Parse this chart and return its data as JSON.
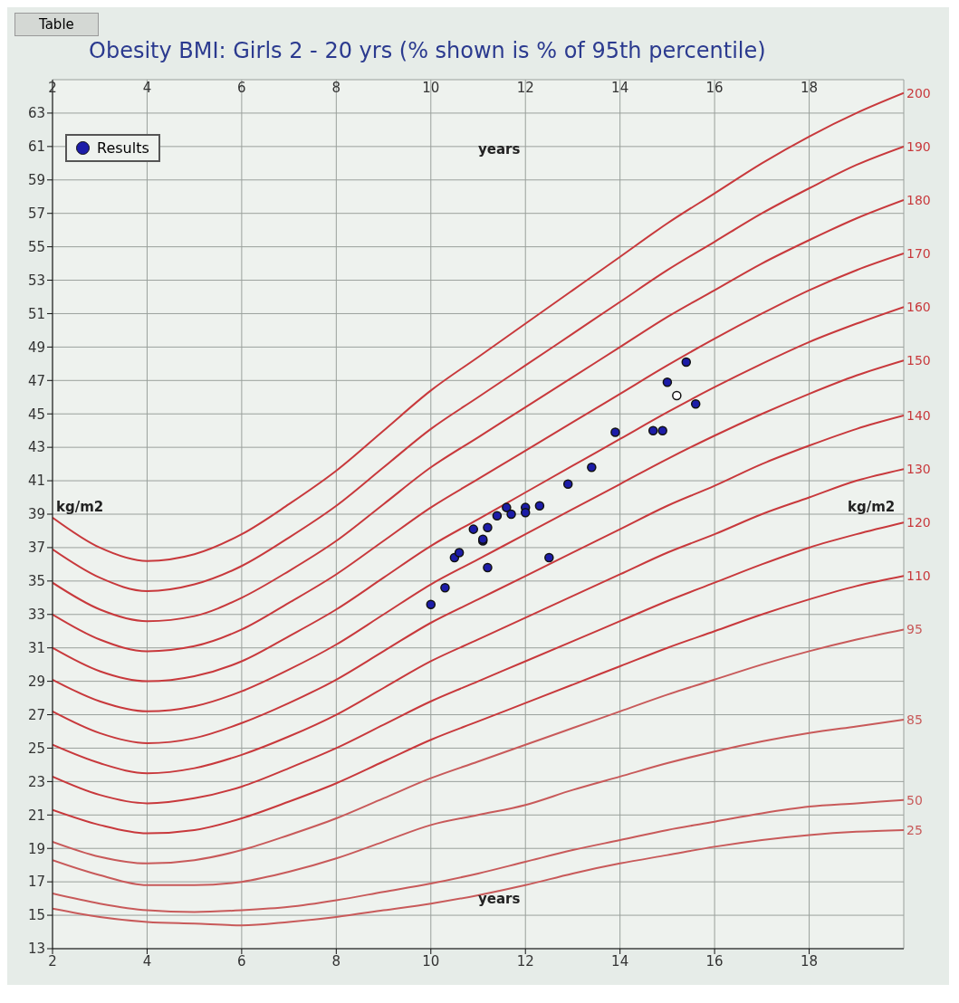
{
  "chart_data": {
    "type": "line",
    "title": "Obesity BMI: Girls 2 - 20 yrs (% shown is % of 95th percentile)",
    "xlabel": "years",
    "x2label": "years",
    "ylabel": "kg/m2",
    "y2label": "kg/m2",
    "annotations": [
      "Table"
    ],
    "xlim": [
      2,
      20
    ],
    "xticks": [
      2,
      4,
      6,
      8,
      10,
      12,
      14,
      16,
      18
    ],
    "x2lim": [
      2,
      20
    ],
    "x2ticks": [
      2,
      4,
      6,
      8,
      10,
      12,
      14,
      16,
      18
    ],
    "ylim": [
      13,
      65
    ],
    "yticks": [
      13,
      15,
      17,
      19,
      21,
      23,
      25,
      27,
      29,
      31,
      33,
      35,
      37,
      39,
      41,
      43,
      45,
      47,
      49,
      51,
      53,
      55,
      57,
      59,
      61,
      63
    ],
    "grid": true,
    "legend": "top left",
    "series": [
      {
        "name": "200",
        "color": "#c8393c",
        "x": [
          2,
          3,
          4,
          5,
          6,
          7,
          8,
          9,
          10,
          11,
          12,
          13,
          14,
          15,
          16,
          17,
          18,
          19,
          20
        ],
        "values": [
          38.8,
          37.0,
          36.2,
          36.6,
          37.8,
          39.6,
          41.6,
          44.0,
          46.4,
          48.4,
          50.4,
          52.4,
          54.4,
          56.4,
          58.2,
          60.0,
          61.6,
          63.0,
          64.2
        ]
      },
      {
        "name": "190",
        "color": "#c8393c",
        "x": [
          2,
          3,
          4,
          5,
          6,
          7,
          8,
          9,
          10,
          11,
          12,
          13,
          14,
          15,
          16,
          17,
          18,
          19,
          20
        ],
        "values": [
          36.9,
          35.2,
          34.4,
          34.8,
          35.9,
          37.6,
          39.5,
          41.8,
          44.1,
          46.0,
          47.9,
          49.8,
          51.7,
          53.6,
          55.3,
          57.0,
          58.5,
          59.9,
          61.0
        ]
      },
      {
        "name": "180",
        "color": "#c8393c",
        "x": [
          2,
          3,
          4,
          5,
          6,
          7,
          8,
          9,
          10,
          11,
          12,
          13,
          14,
          15,
          16,
          17,
          18,
          19,
          20
        ],
        "values": [
          34.9,
          33.3,
          32.6,
          32.9,
          34.0,
          35.6,
          37.4,
          39.6,
          41.8,
          43.6,
          45.4,
          47.2,
          49.0,
          50.8,
          52.4,
          54.0,
          55.4,
          56.7,
          57.8
        ]
      },
      {
        "name": "170",
        "color": "#c8393c",
        "x": [
          2,
          3,
          4,
          5,
          6,
          7,
          8,
          9,
          10,
          11,
          12,
          13,
          14,
          15,
          16,
          17,
          18,
          19,
          20
        ],
        "values": [
          33.0,
          31.5,
          30.8,
          31.1,
          32.1,
          33.7,
          35.4,
          37.4,
          39.4,
          41.1,
          42.8,
          44.5,
          46.2,
          47.9,
          49.5,
          51.0,
          52.4,
          53.6,
          54.6
        ]
      },
      {
        "name": "160",
        "color": "#c8393c",
        "x": [
          2,
          3,
          4,
          5,
          6,
          7,
          8,
          9,
          10,
          11,
          12,
          13,
          14,
          15,
          16,
          17,
          18,
          19,
          20
        ],
        "values": [
          31.0,
          29.6,
          29.0,
          29.3,
          30.2,
          31.7,
          33.3,
          35.2,
          37.1,
          38.7,
          40.3,
          41.9,
          43.5,
          45.1,
          46.6,
          48.0,
          49.3,
          50.4,
          51.4
        ]
      },
      {
        "name": "150",
        "color": "#c8393c",
        "x": [
          2,
          3,
          4,
          5,
          6,
          7,
          8,
          9,
          10,
          11,
          12,
          13,
          14,
          15,
          16,
          17,
          18,
          19,
          20
        ],
        "values": [
          29.1,
          27.8,
          27.2,
          27.5,
          28.4,
          29.7,
          31.2,
          33.0,
          34.8,
          36.3,
          37.8,
          39.3,
          40.8,
          42.3,
          43.7,
          45.0,
          46.2,
          47.3,
          48.2
        ]
      },
      {
        "name": "140",
        "color": "#c8393c",
        "x": [
          2,
          3,
          4,
          5,
          6,
          7,
          8,
          9,
          10,
          11,
          12,
          13,
          14,
          15,
          16,
          17,
          18,
          19,
          20
        ],
        "values": [
          27.2,
          25.9,
          25.3,
          25.6,
          26.5,
          27.7,
          29.1,
          30.8,
          32.5,
          33.9,
          35.3,
          36.7,
          38.1,
          39.5,
          40.7,
          42.0,
          43.1,
          44.1,
          44.9
        ]
      },
      {
        "name": "130",
        "color": "#c8393c",
        "x": [
          2,
          3,
          4,
          5,
          6,
          7,
          8,
          9,
          10,
          11,
          12,
          13,
          14,
          15,
          16,
          17,
          18,
          19,
          20
        ],
        "values": [
          25.2,
          24.1,
          23.5,
          23.8,
          24.6,
          25.7,
          27.0,
          28.6,
          30.2,
          31.5,
          32.8,
          34.1,
          35.4,
          36.7,
          37.8,
          39.0,
          40.0,
          41.0,
          41.7
        ]
      },
      {
        "name": "120",
        "color": "#c8393c",
        "x": [
          2,
          3,
          4,
          5,
          6,
          7,
          8,
          9,
          10,
          11,
          12,
          13,
          14,
          15,
          16,
          17,
          18,
          19,
          20
        ],
        "values": [
          23.3,
          22.2,
          21.7,
          22.0,
          22.7,
          23.8,
          25.0,
          26.4,
          27.8,
          29.0,
          30.2,
          31.4,
          32.6,
          33.8,
          34.9,
          36.0,
          37.0,
          37.8,
          38.5
        ]
      },
      {
        "name": "110",
        "color": "#c8393c",
        "x": [
          2,
          3,
          4,
          5,
          6,
          7,
          8,
          9,
          10,
          11,
          12,
          13,
          14,
          15,
          16,
          17,
          18,
          19,
          20
        ],
        "values": [
          21.3,
          20.4,
          19.9,
          20.1,
          20.8,
          21.8,
          22.9,
          24.2,
          25.5,
          26.6,
          27.7,
          28.8,
          29.9,
          31.0,
          32.0,
          33.0,
          33.9,
          34.7,
          35.3
        ]
      },
      {
        "name": "95",
        "color": "#c85a5a",
        "x": [
          2,
          3,
          4,
          5,
          6,
          7,
          8,
          9,
          10,
          11,
          12,
          13,
          14,
          15,
          16,
          17,
          18,
          19,
          20
        ],
        "values": [
          19.4,
          18.5,
          18.1,
          18.3,
          18.9,
          19.8,
          20.8,
          22.0,
          23.2,
          24.2,
          25.2,
          26.2,
          27.2,
          28.2,
          29.1,
          30.0,
          30.8,
          31.5,
          32.1
        ]
      },
      {
        "name": "85",
        "color": "#c85a5a",
        "x": [
          2,
          3,
          4,
          5,
          6,
          7,
          8,
          9,
          10,
          11,
          12,
          13,
          14,
          15,
          16,
          17,
          18,
          19,
          20
        ],
        "values": [
          18.3,
          17.4,
          16.8,
          16.8,
          17.0,
          17.6,
          18.4,
          19.4,
          20.4,
          21.0,
          21.6,
          22.5,
          23.3,
          24.1,
          24.8,
          25.4,
          25.9,
          26.3,
          26.7
        ]
      },
      {
        "name": "50",
        "color": "#c85a5a",
        "x": [
          2,
          3,
          4,
          5,
          6,
          7,
          8,
          9,
          10,
          11,
          12,
          13,
          14,
          15,
          16,
          17,
          18,
          19,
          20
        ],
        "values": [
          16.3,
          15.7,
          15.3,
          15.2,
          15.3,
          15.5,
          15.9,
          16.4,
          16.9,
          17.5,
          18.2,
          18.9,
          19.5,
          20.1,
          20.6,
          21.1,
          21.5,
          21.7,
          21.9
        ]
      },
      {
        "name": "25",
        "color": "#c85a5a",
        "x": [
          2,
          3,
          4,
          5,
          6,
          7,
          8,
          9,
          10,
          11,
          12,
          13,
          14,
          15,
          16,
          17,
          18,
          19,
          20
        ],
        "values": [
          15.4,
          14.9,
          14.6,
          14.5,
          14.4,
          14.6,
          14.9,
          15.3,
          15.7,
          16.2,
          16.8,
          17.5,
          18.1,
          18.6,
          19.1,
          19.5,
          19.8,
          20.0,
          20.1
        ]
      },
      {
        "name": "Results",
        "type": "scatter",
        "marker": "circle",
        "color": "#1c1ca8",
        "x": [
          10.0,
          10.3,
          10.5,
          10.6,
          10.9,
          11.2,
          11.1,
          11.1,
          11.2,
          11.4,
          11.6,
          11.7,
          12.0,
          12.0,
          12.3,
          12.5,
          12.9,
          13.4,
          13.9,
          14.7,
          14.9,
          15.0,
          15.4,
          15.6,
          15.2
        ],
        "values": [
          33.6,
          34.6,
          36.4,
          36.7,
          38.1,
          38.2,
          37.4,
          37.5,
          35.8,
          38.9,
          39.4,
          39.0,
          39.4,
          39.1,
          39.5,
          36.4,
          40.8,
          41.8,
          43.9,
          44.0,
          44.0,
          46.9,
          48.1,
          45.6,
          46.1
        ],
        "colors": [
          "#1c1ca8",
          "#1c1ca8",
          "#1c1ca8",
          "#1c1ca8",
          "#1c1ca8",
          "#1c1ca8",
          "#1c1ca8",
          "#1c1ca8",
          "#1c1ca8",
          "#1c1ca8",
          "#1c1ca8",
          "#1c1ca8",
          "#1c1ca8",
          "#1c1ca8",
          "#1c1ca8",
          "#1c1ca8",
          "#1c1ca8",
          "#1c1ca8",
          "#1c1ca8",
          "#1c1ca8",
          "#1c1ca8",
          "#1c1ca8",
          "#1c1ca8",
          "#1c1ca8",
          "#ffffff"
        ]
      }
    ]
  }
}
